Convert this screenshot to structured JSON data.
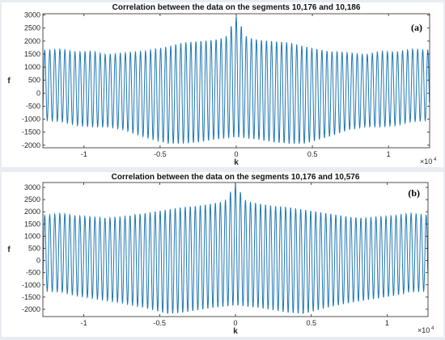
{
  "chart_data": [
    {
      "type": "line",
      "title": "Correlation between the data on the segments 10,176 and 10,186",
      "panel_tag": "(a)",
      "xlabel": "k",
      "ylabel": "f",
      "x_exponent_base": "×10",
      "x_exponent_power": "4",
      "xlim": [
        -12700,
        12700
      ],
      "ylim": [
        -2100,
        3050
      ],
      "xticks": [
        -10000,
        -5000,
        0,
        5000,
        10000
      ],
      "xtick_labels": [
        "-1",
        "-0.5",
        "0",
        "0.5",
        "1"
      ],
      "yticks": [
        -2000,
        -1500,
        -1000,
        -500,
        0,
        500,
        1000,
        1500,
        2000,
        2500,
        3000
      ],
      "ytick_labels": [
        "-2000",
        "-1500",
        "-1000",
        "-500",
        "0",
        "500",
        "1000",
        "1500",
        "2000",
        "2500",
        "3000"
      ],
      "grid": false,
      "color": "#1f77b4",
      "oscillation_period": 331,
      "peak": {
        "x": 0,
        "y": 2950
      },
      "envelope_k": [
        -12700,
        -11500,
        -10500,
        -9500,
        -8500,
        -7500,
        -6000,
        -4500,
        -3500,
        -2500,
        -1500,
        -700,
        0,
        700,
        1500,
        2500,
        3500,
        4500,
        6000,
        7500,
        8500,
        9500,
        10500,
        11500,
        12700
      ],
      "envelope_upper": [
        1650,
        1700,
        1580,
        1620,
        1480,
        1550,
        1620,
        1800,
        1950,
        2000,
        2050,
        2150,
        2950,
        2150,
        2050,
        2000,
        1950,
        1800,
        1620,
        1550,
        1480,
        1620,
        1580,
        1700,
        1650
      ],
      "envelope_lower": [
        -1050,
        -1100,
        -1250,
        -1300,
        -1300,
        -1400,
        -1700,
        -1950,
        -1950,
        -1900,
        -1800,
        -1750,
        -1700,
        -1750,
        -1800,
        -1900,
        -1950,
        -1950,
        -1700,
        -1400,
        -1300,
        -1300,
        -1250,
        -1100,
        -1050
      ]
    },
    {
      "type": "line",
      "title": "Correlation between the data on the segments 10,176 and 10,576",
      "panel_tag": "(b)",
      "xlabel": "k",
      "ylabel": "f",
      "x_exponent_base": "×10",
      "x_exponent_power": "4",
      "xlim": [
        -12700,
        12700
      ],
      "ylim": [
        -2300,
        3200
      ],
      "xticks": [
        -10000,
        -5000,
        0,
        5000,
        10000
      ],
      "xtick_labels": [
        "-1",
        "-0.5",
        "0",
        "0.5",
        "1"
      ],
      "yticks": [
        -2000,
        -1500,
        -1000,
        -500,
        0,
        500,
        1000,
        1500,
        2000,
        2500,
        3000
      ],
      "ytick_labels": [
        "-2000",
        "-1500",
        "-1000",
        "-500",
        "0",
        "500",
        "1000",
        "1500",
        "2000",
        "2500",
        "3000"
      ],
      "grid": false,
      "color": "#1f77b4",
      "oscillation_period": 331,
      "peak": {
        "x": 0,
        "y": 3150
      },
      "envelope_k": [
        -12700,
        -11500,
        -10500,
        -9500,
        -8500,
        -7500,
        -6000,
        -4500,
        -3500,
        -2500,
        -1500,
        -700,
        0,
        700,
        1500,
        2500,
        3500,
        4500,
        6000,
        7500,
        8500,
        9500,
        10500,
        11500,
        12700
      ],
      "envelope_upper": [
        1850,
        1950,
        1850,
        1800,
        1750,
        1800,
        1950,
        2100,
        2200,
        2250,
        2350,
        2450,
        3150,
        2450,
        2350,
        2250,
        2200,
        2100,
        1950,
        1800,
        1750,
        1800,
        1850,
        1950,
        1850
      ],
      "envelope_lower": [
        -1250,
        -1300,
        -1450,
        -1550,
        -1650,
        -1750,
        -1950,
        -2200,
        -2150,
        -2050,
        -1950,
        -1900,
        -1850,
        -1900,
        -1950,
        -2050,
        -2150,
        -2200,
        -1950,
        -1750,
        -1650,
        -1550,
        -1450,
        -1300,
        -1250
      ]
    }
  ]
}
